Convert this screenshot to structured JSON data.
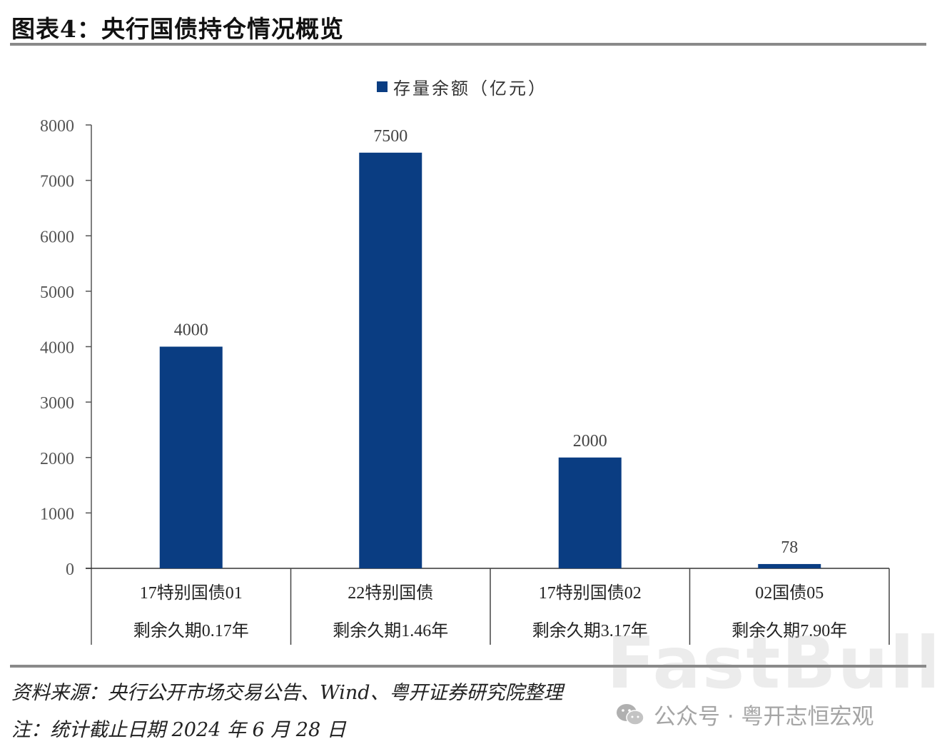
{
  "header": {
    "title": "图表4：央行国债持仓情况概览"
  },
  "legend": {
    "label": "存量余额（亿元）",
    "color": "#0a3d82"
  },
  "chart_data": {
    "type": "bar",
    "title": "央行国债持仓情况概览",
    "categories": [
      "17特别国债01 剩余久期0.17年",
      "22特别国债 剩余久期1.46年",
      "17特别国债02 剩余久期3.17年",
      "02国债05 剩余久期7.90年"
    ],
    "category_lines": [
      [
        "17特别国债01",
        "剩余久期0.17年"
      ],
      [
        "22特别国债",
        "剩余久期1.46年"
      ],
      [
        "17特别国债02",
        "剩余久期3.17年"
      ],
      [
        "02国债05",
        "剩余久期7.90年"
      ]
    ],
    "series": [
      {
        "name": "存量余额（亿元）",
        "values": [
          4000,
          7500,
          2000,
          78
        ],
        "color": "#0a3d82"
      }
    ],
    "data_labels": [
      "4000",
      "7500",
      "2000",
      "78"
    ],
    "xlabel": "",
    "ylabel": "",
    "ylim": [
      0,
      8000
    ],
    "yticks": [
      "0",
      "1000",
      "2000",
      "3000",
      "4000",
      "5000",
      "6000",
      "7000",
      "8000"
    ],
    "grid": false,
    "legend_position": "top"
  },
  "footer": {
    "source": "资料来源：央行公开市场交易公告、Wind、粤开证券研究院整理",
    "note": "注：统计截止日期 2024 年 6 月 28 日",
    "watermark": "公众号 · 粤开志恒宏观",
    "brand_watermark": "FastBull"
  }
}
